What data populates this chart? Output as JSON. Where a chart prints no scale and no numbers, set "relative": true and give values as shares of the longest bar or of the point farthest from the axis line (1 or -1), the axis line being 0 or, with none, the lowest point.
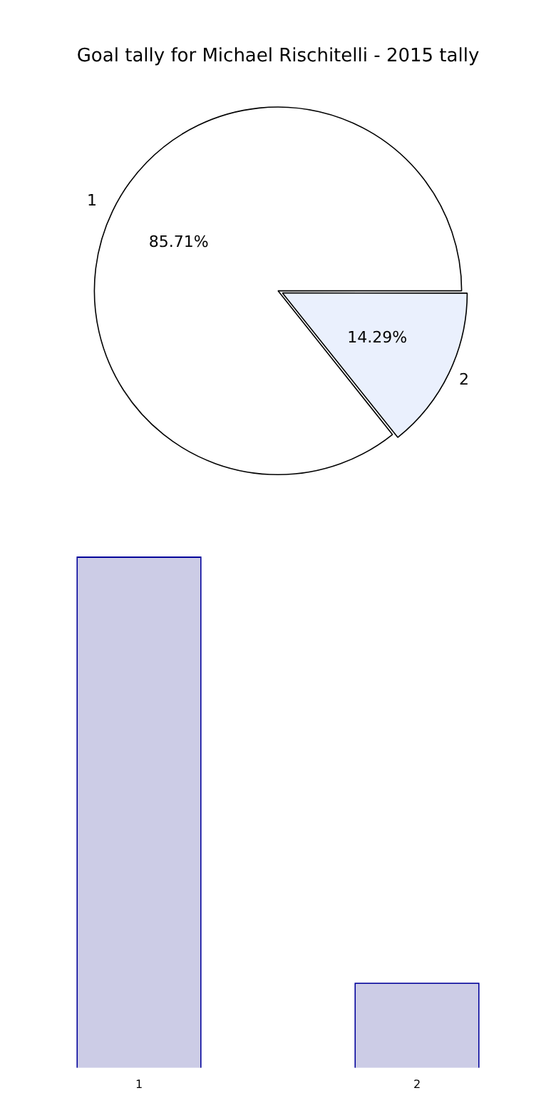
{
  "chart_data": [
    {
      "type": "pie",
      "title": "Goal tally for Michael Rischitelli - 2015 tally",
      "categories": [
        "1",
        "2"
      ],
      "values": [
        85.71,
        14.29
      ],
      "colors": [
        "#ffffff",
        "#eaf0fd"
      ],
      "value_labels": [
        "85.71%",
        "14.29%"
      ],
      "legend": false
    },
    {
      "type": "bar",
      "categories": [
        "1",
        "2"
      ],
      "values": [
        1,
        0.1667
      ],
      "color": "#ccccE6",
      "relative": true,
      "legend": false,
      "grid": false
    }
  ]
}
